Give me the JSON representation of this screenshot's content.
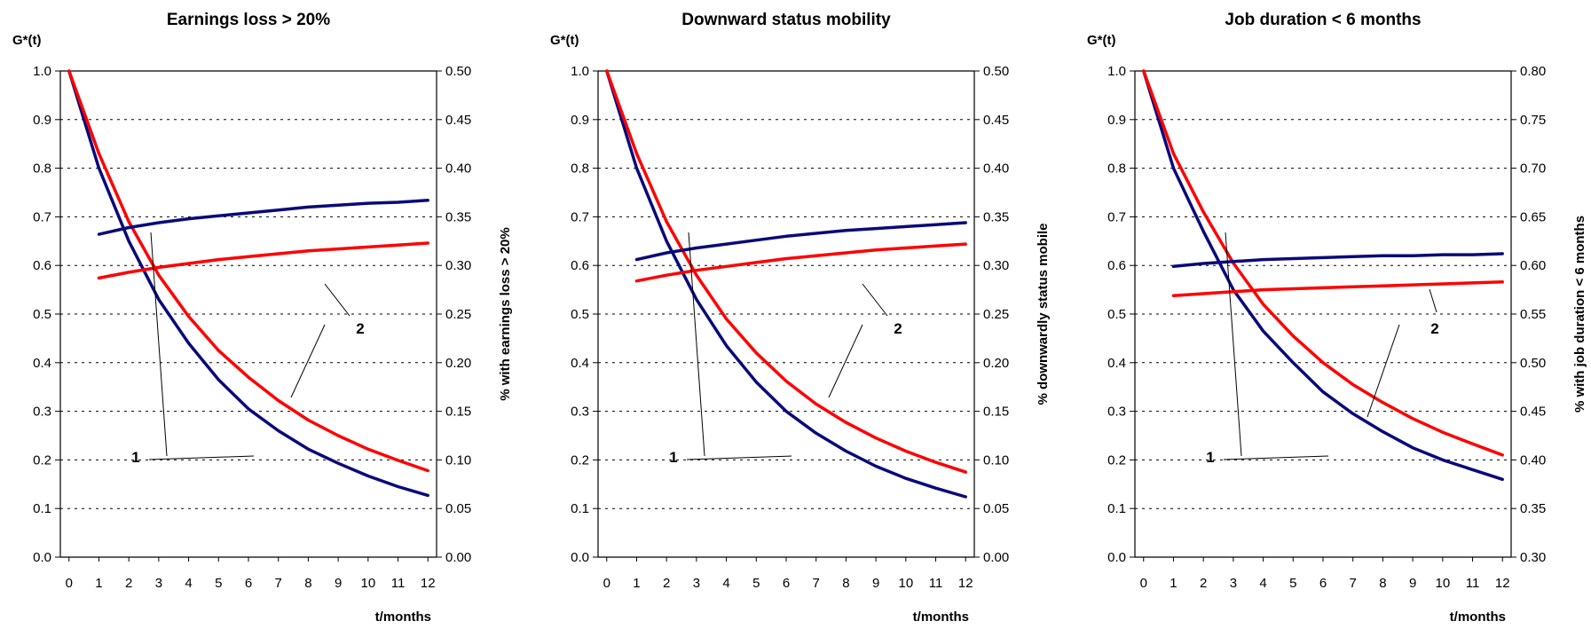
{
  "colors": {
    "series1": "#0a0a7a",
    "series2": "#ff0000",
    "axis": "#000000",
    "grid": "#000000"
  },
  "chart_data": [
    {
      "type": "line",
      "title": "Earnings loss > 20%",
      "ylabel": "G*(t)",
      "y2label": "% with earnings loss > 20%",
      "xlabel": "t/months",
      "x_ticks": [
        "0",
        "1",
        "2",
        "3",
        "4",
        "5",
        "6",
        "7",
        "8",
        "9",
        "10",
        "11",
        "12"
      ],
      "y_ticks": [
        "0.0",
        "0.1",
        "0.2",
        "0.3",
        "0.4",
        "0.5",
        "0.6",
        "0.7",
        "0.8",
        "0.9",
        "1.0"
      ],
      "y2_ticks": [
        "0.00",
        "0.05",
        "0.10",
        "0.15",
        "0.20",
        "0.25",
        "0.30",
        "0.35",
        "0.40",
        "0.45",
        "0.50"
      ],
      "xlim": [
        0,
        12
      ],
      "ylim": [
        0,
        1
      ],
      "y2lim": [
        0,
        0.5
      ],
      "grid": true,
      "callouts": [
        "1",
        "2"
      ],
      "series": [
        {
          "axis": "left",
          "color": "series1",
          "x": [
            0,
            1,
            2,
            3,
            4,
            5,
            6,
            7,
            8,
            9,
            10,
            11,
            12
          ],
          "values": [
            1.0,
            0.8,
            0.65,
            0.53,
            0.44,
            0.365,
            0.305,
            0.26,
            0.222,
            0.193,
            0.167,
            0.145,
            0.127
          ]
        },
        {
          "axis": "left",
          "color": "series2",
          "x": [
            0,
            1,
            2,
            3,
            4,
            5,
            6,
            7,
            8,
            9,
            10,
            11,
            12
          ],
          "values": [
            1.0,
            0.83,
            0.69,
            0.58,
            0.495,
            0.425,
            0.37,
            0.322,
            0.282,
            0.25,
            0.222,
            0.199,
            0.178
          ]
        },
        {
          "axis": "right",
          "color": "series1",
          "x": [
            1,
            2,
            3,
            4,
            5,
            6,
            7,
            8,
            9,
            10,
            11,
            12
          ],
          "values": [
            0.332,
            0.339,
            0.344,
            0.348,
            0.351,
            0.354,
            0.357,
            0.36,
            0.362,
            0.364,
            0.365,
            0.367
          ]
        },
        {
          "axis": "right",
          "color": "series2",
          "x": [
            1,
            2,
            3,
            4,
            5,
            6,
            7,
            8,
            9,
            10,
            11,
            12
          ],
          "values": [
            0.287,
            0.293,
            0.298,
            0.302,
            0.306,
            0.309,
            0.312,
            0.315,
            0.317,
            0.319,
            0.321,
            0.323
          ]
        }
      ]
    },
    {
      "type": "line",
      "title": "Downward status mobility",
      "ylabel": "G*(t)",
      "y2label": "% downwardly status mobile",
      "xlabel": "t/months",
      "x_ticks": [
        "0",
        "1",
        "2",
        "3",
        "4",
        "5",
        "6",
        "7",
        "8",
        "9",
        "10",
        "11",
        "12"
      ],
      "y_ticks": [
        "0.0",
        "0.1",
        "0.2",
        "0.3",
        "0.4",
        "0.5",
        "0.6",
        "0.7",
        "0.8",
        "0.9",
        "1.0"
      ],
      "y2_ticks": [
        "0.00",
        "0.05",
        "0.10",
        "0.15",
        "0.20",
        "0.25",
        "0.30",
        "0.35",
        "0.40",
        "0.45",
        "0.50"
      ],
      "xlim": [
        0,
        12
      ],
      "ylim": [
        0,
        1
      ],
      "y2lim": [
        0,
        0.5
      ],
      "grid": true,
      "callouts": [
        "1",
        "2"
      ],
      "series": [
        {
          "axis": "left",
          "color": "series1",
          "x": [
            0,
            1,
            2,
            3,
            4,
            5,
            6,
            7,
            8,
            9,
            10,
            11,
            12
          ],
          "values": [
            1.0,
            0.8,
            0.65,
            0.53,
            0.435,
            0.36,
            0.3,
            0.255,
            0.218,
            0.187,
            0.162,
            0.142,
            0.124
          ]
        },
        {
          "axis": "left",
          "color": "series2",
          "x": [
            0,
            1,
            2,
            3,
            4,
            5,
            6,
            7,
            8,
            9,
            10,
            11,
            12
          ],
          "values": [
            1.0,
            0.83,
            0.69,
            0.58,
            0.49,
            0.42,
            0.362,
            0.315,
            0.277,
            0.245,
            0.218,
            0.195,
            0.175
          ]
        },
        {
          "axis": "right",
          "color": "series1",
          "x": [
            1,
            2,
            3,
            4,
            5,
            6,
            7,
            8,
            9,
            10,
            11,
            12
          ],
          "values": [
            0.306,
            0.313,
            0.318,
            0.322,
            0.326,
            0.33,
            0.333,
            0.336,
            0.338,
            0.34,
            0.342,
            0.344
          ]
        },
        {
          "axis": "right",
          "color": "series2",
          "x": [
            1,
            2,
            3,
            4,
            5,
            6,
            7,
            8,
            9,
            10,
            11,
            12
          ],
          "values": [
            0.284,
            0.29,
            0.295,
            0.299,
            0.303,
            0.307,
            0.31,
            0.313,
            0.316,
            0.318,
            0.32,
            0.322
          ]
        }
      ]
    },
    {
      "type": "line",
      "title": "Job duration < 6 months",
      "ylabel": "G*(t)",
      "y2label": "% with job duration < 6 months",
      "xlabel": "t/months",
      "x_ticks": [
        "0",
        "1",
        "2",
        "3",
        "4",
        "5",
        "6",
        "7",
        "8",
        "9",
        "10",
        "11",
        "12"
      ],
      "y_ticks": [
        "0.0",
        "0.1",
        "0.2",
        "0.3",
        "0.4",
        "0.5",
        "0.6",
        "0.7",
        "0.8",
        "0.9",
        "1.0"
      ],
      "y2_ticks": [
        "0.30",
        "0.35",
        "0.40",
        "0.45",
        "0.50",
        "0.55",
        "0.60",
        "0.65",
        "0.70",
        "0.75",
        "0.80"
      ],
      "xlim": [
        0,
        12
      ],
      "ylim": [
        0,
        1
      ],
      "y2lim": [
        0.3,
        0.8
      ],
      "grid": true,
      "callouts": [
        "1",
        "2"
      ],
      "series": [
        {
          "axis": "left",
          "color": "series1",
          "x": [
            0,
            1,
            2,
            3,
            4,
            5,
            6,
            7,
            8,
            9,
            10,
            11,
            12
          ],
          "values": [
            1.0,
            0.8,
            0.67,
            0.55,
            0.465,
            0.4,
            0.34,
            0.295,
            0.258,
            0.225,
            0.2,
            0.18,
            0.16
          ]
        },
        {
          "axis": "left",
          "color": "series2",
          "x": [
            0,
            1,
            2,
            3,
            4,
            5,
            6,
            7,
            8,
            9,
            10,
            11,
            12
          ],
          "values": [
            1.0,
            0.83,
            0.71,
            0.605,
            0.52,
            0.455,
            0.4,
            0.355,
            0.318,
            0.285,
            0.257,
            0.233,
            0.21
          ]
        },
        {
          "axis": "right",
          "color": "series1",
          "x": [
            1,
            2,
            3,
            4,
            5,
            6,
            7,
            8,
            9,
            10,
            11,
            12
          ],
          "values": [
            0.599,
            0.602,
            0.604,
            0.606,
            0.607,
            0.608,
            0.609,
            0.61,
            0.61,
            0.611,
            0.611,
            0.612
          ]
        },
        {
          "axis": "right",
          "color": "series2",
          "x": [
            1,
            2,
            3,
            4,
            5,
            6,
            7,
            8,
            9,
            10,
            11,
            12
          ],
          "values": [
            0.569,
            0.571,
            0.573,
            0.575,
            0.576,
            0.577,
            0.578,
            0.579,
            0.58,
            0.581,
            0.582,
            0.583
          ]
        }
      ]
    }
  ]
}
